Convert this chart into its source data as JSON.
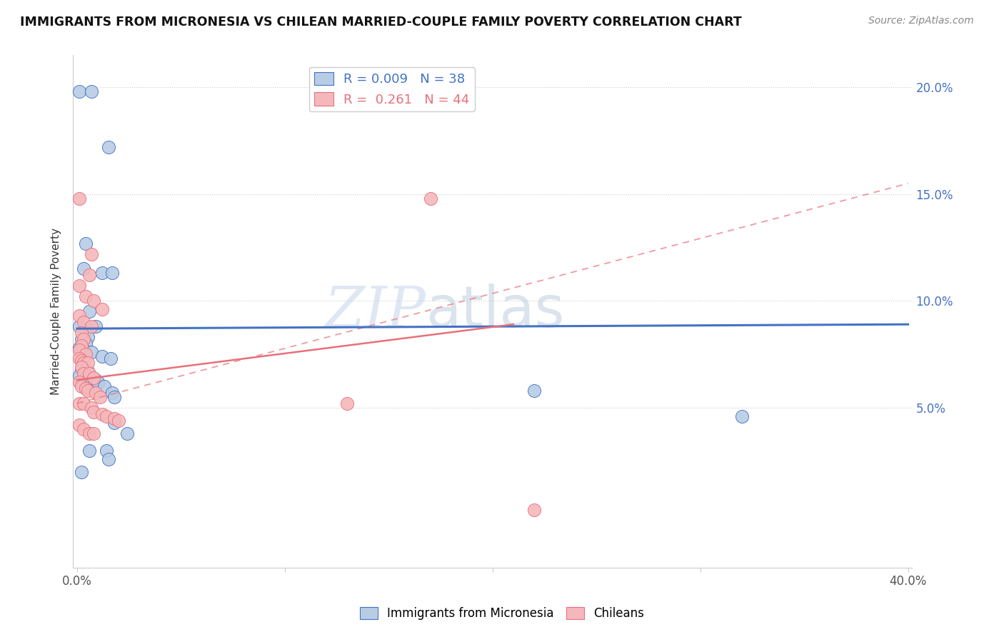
{
  "title": "IMMIGRANTS FROM MICRONESIA VS CHILEAN MARRIED-COUPLE FAMILY POVERTY CORRELATION CHART",
  "source": "Source: ZipAtlas.com",
  "ylabel": "Married-Couple Family Poverty",
  "watermark_zip": "ZIP",
  "watermark_atlas": "atlas",
  "blue_color": "#4472c4",
  "pink_color": "#e8707a",
  "blue_light": "#b8cce4",
  "pink_light": "#f4b8bc",
  "xlim": [
    -0.002,
    0.402
  ],
  "ylim": [
    -0.025,
    0.215
  ],
  "ytick_vals": [
    0.05,
    0.1,
    0.15,
    0.2
  ],
  "ytick_labels": [
    "5.0%",
    "10.0%",
    "15.0%",
    "20.0%"
  ],
  "grid_yticks": [
    0.05,
    0.1,
    0.15,
    0.2
  ],
  "legend_r1": "R = 0.009",
  "legend_n1": "N = 38",
  "legend_r2": "R =  0.261",
  "legend_n2": "N = 44",
  "blue_line": [
    [
      0.0,
      0.087
    ],
    [
      0.4,
      0.089
    ]
  ],
  "pink_solid_line": [
    [
      0.0,
      0.063
    ],
    [
      0.21,
      0.089
    ]
  ],
  "pink_dashed_line": [
    [
      0.0,
      0.052
    ],
    [
      0.4,
      0.155
    ]
  ],
  "blue_scatter": [
    [
      0.001,
      0.198
    ],
    [
      0.007,
      0.198
    ],
    [
      0.015,
      0.172
    ],
    [
      0.004,
      0.127
    ],
    [
      0.003,
      0.115
    ],
    [
      0.012,
      0.113
    ],
    [
      0.017,
      0.113
    ],
    [
      0.006,
      0.095
    ],
    [
      0.009,
      0.088
    ],
    [
      0.001,
      0.088
    ],
    [
      0.003,
      0.084
    ],
    [
      0.005,
      0.083
    ],
    [
      0.002,
      0.082
    ],
    [
      0.004,
      0.08
    ],
    [
      0.001,
      0.078
    ],
    [
      0.003,
      0.077
    ],
    [
      0.007,
      0.076
    ],
    [
      0.012,
      0.074
    ],
    [
      0.016,
      0.073
    ],
    [
      0.002,
      0.068
    ],
    [
      0.005,
      0.067
    ],
    [
      0.001,
      0.065
    ],
    [
      0.004,
      0.064
    ],
    [
      0.007,
      0.063
    ],
    [
      0.009,
      0.063
    ],
    [
      0.002,
      0.062
    ],
    [
      0.01,
      0.062
    ],
    [
      0.013,
      0.06
    ],
    [
      0.017,
      0.057
    ],
    [
      0.018,
      0.055
    ],
    [
      0.018,
      0.043
    ],
    [
      0.024,
      0.038
    ],
    [
      0.22,
      0.058
    ],
    [
      0.32,
      0.046
    ],
    [
      0.006,
      0.03
    ],
    [
      0.014,
      0.03
    ],
    [
      0.015,
      0.026
    ],
    [
      0.002,
      0.02
    ]
  ],
  "pink_scatter": [
    [
      0.001,
      0.148
    ],
    [
      0.007,
      0.122
    ],
    [
      0.006,
      0.112
    ],
    [
      0.001,
      0.107
    ],
    [
      0.004,
      0.102
    ],
    [
      0.008,
      0.1
    ],
    [
      0.012,
      0.096
    ],
    [
      0.001,
      0.093
    ],
    [
      0.003,
      0.09
    ],
    [
      0.007,
      0.088
    ],
    [
      0.002,
      0.085
    ],
    [
      0.003,
      0.082
    ],
    [
      0.002,
      0.079
    ],
    [
      0.001,
      0.077
    ],
    [
      0.004,
      0.075
    ],
    [
      0.001,
      0.073
    ],
    [
      0.002,
      0.072
    ],
    [
      0.003,
      0.071
    ],
    [
      0.005,
      0.071
    ],
    [
      0.002,
      0.069
    ],
    [
      0.003,
      0.066
    ],
    [
      0.006,
      0.066
    ],
    [
      0.008,
      0.064
    ],
    [
      0.001,
      0.062
    ],
    [
      0.002,
      0.06
    ],
    [
      0.004,
      0.059
    ],
    [
      0.005,
      0.058
    ],
    [
      0.009,
      0.057
    ],
    [
      0.011,
      0.055
    ],
    [
      0.001,
      0.052
    ],
    [
      0.003,
      0.052
    ],
    [
      0.007,
      0.05
    ],
    [
      0.008,
      0.048
    ],
    [
      0.012,
      0.047
    ],
    [
      0.014,
      0.046
    ],
    [
      0.018,
      0.045
    ],
    [
      0.02,
      0.044
    ],
    [
      0.001,
      0.042
    ],
    [
      0.003,
      0.04
    ],
    [
      0.006,
      0.038
    ],
    [
      0.008,
      0.038
    ],
    [
      0.13,
      0.052
    ],
    [
      0.17,
      0.148
    ],
    [
      0.22,
      0.002
    ]
  ]
}
